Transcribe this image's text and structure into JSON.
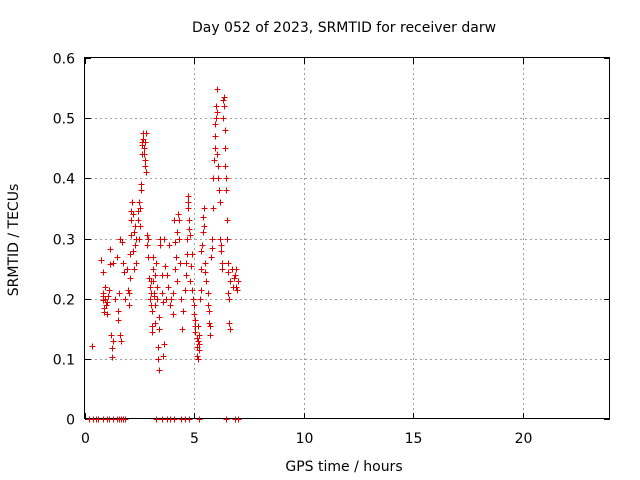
{
  "chart_data": {
    "type": "scatter",
    "title": "Day 052 of 2023, SRMTID for receiver darw",
    "xlabel": "GPS time / hours",
    "ylabel": "SRMTID / TECUs",
    "xlim": [
      0,
      24
    ],
    "ylim": [
      0,
      0.6
    ],
    "xticks": [
      "0",
      "5",
      "10",
      "15",
      "20"
    ],
    "yticks": [
      "0",
      "0.1",
      "0.2",
      "0.3",
      "0.4",
      "0.5",
      "0.6"
    ],
    "grid": true,
    "marker": "+",
    "color": "#e00000",
    "points": [
      [
        0.3,
        0.122
      ],
      [
        0.2,
        0
      ],
      [
        0.35,
        0
      ],
      [
        0.5,
        0
      ],
      [
        0.6,
        0
      ],
      [
        0.8,
        0
      ],
      [
        1.0,
        0
      ],
      [
        1.1,
        0
      ],
      [
        1.3,
        0
      ],
      [
        1.45,
        0
      ],
      [
        1.55,
        0
      ],
      [
        1.65,
        0
      ],
      [
        1.75,
        0
      ],
      [
        1.85,
        0
      ],
      [
        0.75,
        0.265
      ],
      [
        0.8,
        0.245
      ],
      [
        0.8,
        0.21
      ],
      [
        0.82,
        0.205
      ],
      [
        0.84,
        0.198
      ],
      [
        0.85,
        0.185
      ],
      [
        0.86,
        0.178
      ],
      [
        0.9,
        0.22
      ],
      [
        0.92,
        0.2
      ],
      [
        0.95,
        0.19
      ],
      [
        1.0,
        0.195
      ],
      [
        1.02,
        0.175
      ],
      [
        1.05,
        0.205
      ],
      [
        1.1,
        0.215
      ],
      [
        1.15,
        0.282
      ],
      [
        1.15,
        0.258
      ],
      [
        1.2,
        0.14
      ],
      [
        1.22,
        0.118
      ],
      [
        1.25,
        0.103
      ],
      [
        1.27,
        0.13
      ],
      [
        1.3,
        0.26
      ],
      [
        1.35,
        0.2
      ],
      [
        1.45,
        0.27
      ],
      [
        1.5,
        0.18
      ],
      [
        1.52,
        0.165
      ],
      [
        1.55,
        0.21
      ],
      [
        1.6,
        0.3
      ],
      [
        1.62,
        0.14
      ],
      [
        1.65,
        0.13
      ],
      [
        1.7,
        0.295
      ],
      [
        1.75,
        0.26
      ],
      [
        1.8,
        0.245
      ],
      [
        1.85,
        0.2
      ],
      [
        1.9,
        0.25
      ],
      [
        1.95,
        0.215
      ],
      [
        2.0,
        0.21
      ],
      [
        2.0,
        0.19
      ],
      [
        2.05,
        0.235
      ],
      [
        2.05,
        0.275
      ],
      [
        2.1,
        0.305
      ],
      [
        2.1,
        0.33
      ],
      [
        2.12,
        0.345
      ],
      [
        2.15,
        0.36
      ],
      [
        2.2,
        0.34
      ],
      [
        2.2,
        0.28
      ],
      [
        2.25,
        0.31
      ],
      [
        2.25,
        0.25
      ],
      [
        2.3,
        0.32
      ],
      [
        2.3,
        0.29
      ],
      [
        2.35,
        0.3
      ],
      [
        2.35,
        0.26
      ],
      [
        2.4,
        0.345
      ],
      [
        2.4,
        0.33
      ],
      [
        2.45,
        0.3
      ],
      [
        2.45,
        0.36
      ],
      [
        2.5,
        0.35
      ],
      [
        2.5,
        0.32
      ],
      [
        2.55,
        0.38
      ],
      [
        2.55,
        0.39
      ],
      [
        2.6,
        0.44
      ],
      [
        2.6,
        0.46
      ],
      [
        2.62,
        0.455
      ],
      [
        2.65,
        0.475
      ],
      [
        2.65,
        0.465
      ],
      [
        2.7,
        0.45
      ],
      [
        2.7,
        0.44
      ],
      [
        2.72,
        0.43
      ],
      [
        2.75,
        0.42
      ],
      [
        2.75,
        0.46
      ],
      [
        2.8,
        0.475
      ],
      [
        2.8,
        0.41
      ],
      [
        2.82,
        0.305
      ],
      [
        2.85,
        0.29
      ],
      [
        2.88,
        0.3
      ],
      [
        2.9,
        0.27
      ],
      [
        2.92,
        0.235
      ],
      [
        2.95,
        0.22
      ],
      [
        2.95,
        0.2
      ],
      [
        3.0,
        0.19
      ],
      [
        3.0,
        0.21
      ],
      [
        3.02,
        0.23
      ],
      [
        3.05,
        0.18
      ],
      [
        3.05,
        0.155
      ],
      [
        3.08,
        0.145
      ],
      [
        3.1,
        0.25
      ],
      [
        3.1,
        0.27
      ],
      [
        3.12,
        0.23
      ],
      [
        3.15,
        0.205
      ],
      [
        3.15,
        0.21
      ],
      [
        3.2,
        0.19
      ],
      [
        3.2,
        0.16
      ],
      [
        3.22,
        0.24
      ],
      [
        3.25,
        0.26
      ],
      [
        3.3,
        0.22
      ],
      [
        3.3,
        0.2
      ],
      [
        3.35,
        0.1
      ],
      [
        3.35,
        0.12
      ],
      [
        3.38,
        0.082
      ],
      [
        3.4,
        0.15
      ],
      [
        3.4,
        0.17
      ],
      [
        3.42,
        0.3
      ],
      [
        3.45,
        0.29
      ],
      [
        3.5,
        0.24
      ],
      [
        3.5,
        0.21
      ],
      [
        3.55,
        0.195
      ],
      [
        3.55,
        0.105
      ],
      [
        3.6,
        0.125
      ],
      [
        3.62,
        0.3
      ],
      [
        3.65,
        0.255
      ],
      [
        3.7,
        0.2
      ],
      [
        3.75,
        0.24
      ],
      [
        3.8,
        0.22
      ],
      [
        3.85,
        0.29
      ],
      [
        3.9,
        0.19
      ],
      [
        3.95,
        0.2
      ],
      [
        4.0,
        0.175
      ],
      [
        4.0,
        0.21
      ],
      [
        4.05,
        0.33
      ],
      [
        4.1,
        0.295
      ],
      [
        4.1,
        0.25
      ],
      [
        4.15,
        0.27
      ],
      [
        4.2,
        0.31
      ],
      [
        4.2,
        0.23
      ],
      [
        4.25,
        0.34
      ],
      [
        4.3,
        0.33
      ],
      [
        4.3,
        0.3
      ],
      [
        4.35,
        0.26
      ],
      [
        4.4,
        0.2
      ],
      [
        4.45,
        0.15
      ],
      [
        4.5,
        0.18
      ],
      [
        4.55,
        0.215
      ],
      [
        4.6,
        0.24
      ],
      [
        4.6,
        0.26
      ],
      [
        4.65,
        0.275
      ],
      [
        4.65,
        0.3
      ],
      [
        4.7,
        0.35
      ],
      [
        4.7,
        0.37
      ],
      [
        4.72,
        0.36
      ],
      [
        4.75,
        0.33
      ],
      [
        4.75,
        0.315
      ],
      [
        4.8,
        0.305
      ],
      [
        4.8,
        0.23
      ],
      [
        4.85,
        0.255
      ],
      [
        4.9,
        0.275
      ],
      [
        4.9,
        0.215
      ],
      [
        4.95,
        0.2
      ],
      [
        5.0,
        0.19
      ],
      [
        5.0,
        0.175
      ],
      [
        5.02,
        0.165
      ],
      [
        5.05,
        0.155
      ],
      [
        5.05,
        0.145
      ],
      [
        5.1,
        0.135
      ],
      [
        5.1,
        0.12
      ],
      [
        5.12,
        0.105
      ],
      [
        5.15,
        0.1
      ],
      [
        5.15,
        0.13
      ],
      [
        5.18,
        0.155
      ],
      [
        5.2,
        0.14
      ],
      [
        5.2,
        0.115
      ],
      [
        5.22,
        0.125
      ],
      [
        5.25,
        0.2
      ],
      [
        5.28,
        0.215
      ],
      [
        5.3,
        0.25
      ],
      [
        5.3,
        0.28
      ],
      [
        5.35,
        0.29
      ],
      [
        5.4,
        0.31
      ],
      [
        5.4,
        0.335
      ],
      [
        5.45,
        0.35
      ],
      [
        5.45,
        0.32
      ],
      [
        5.5,
        0.26
      ],
      [
        5.5,
        0.245
      ],
      [
        5.55,
        0.23
      ],
      [
        5.6,
        0.21
      ],
      [
        5.6,
        0.19
      ],
      [
        5.65,
        0.18
      ],
      [
        5.65,
        0.16
      ],
      [
        5.7,
        0.14
      ],
      [
        5.7,
        0.155
      ],
      [
        5.75,
        0.27
      ],
      [
        5.8,
        0.285
      ],
      [
        5.8,
        0.3
      ],
      [
        5.85,
        0.35
      ],
      [
        5.85,
        0.4
      ],
      [
        5.9,
        0.43
      ],
      [
        5.92,
        0.45
      ],
      [
        5.95,
        0.47
      ],
      [
        5.95,
        0.49
      ],
      [
        6.0,
        0.5
      ],
      [
        6.0,
        0.52
      ],
      [
        6.02,
        0.548
      ],
      [
        6.05,
        0.51
      ],
      [
        6.05,
        0.44
      ],
      [
        6.1,
        0.42
      ],
      [
        6.1,
        0.4
      ],
      [
        6.12,
        0.38
      ],
      [
        6.15,
        0.36
      ],
      [
        6.15,
        0.3
      ],
      [
        6.2,
        0.29
      ],
      [
        6.2,
        0.28
      ],
      [
        6.25,
        0.26
      ],
      [
        6.25,
        0.25
      ],
      [
        6.3,
        0.53
      ],
      [
        6.3,
        0.5
      ],
      [
        6.35,
        0.535
      ],
      [
        6.35,
        0.52
      ],
      [
        6.38,
        0.48
      ],
      [
        6.4,
        0.45
      ],
      [
        6.4,
        0.42
      ],
      [
        6.45,
        0.4
      ],
      [
        6.45,
        0.38
      ],
      [
        6.5,
        0.33
      ],
      [
        6.5,
        0.3
      ],
      [
        6.52,
        0.26
      ],
      [
        6.55,
        0.245
      ],
      [
        6.55,
        0.21
      ],
      [
        6.6,
        0.2
      ],
      [
        6.6,
        0.16
      ],
      [
        6.62,
        0.15
      ],
      [
        6.65,
        0.23
      ],
      [
        6.7,
        0.25
      ],
      [
        6.75,
        0.22
      ],
      [
        6.8,
        0.235
      ],
      [
        6.85,
        0.24
      ],
      [
        6.9,
        0.25
      ],
      [
        6.9,
        0.22
      ],
      [
        6.95,
        0.215
      ],
      [
        7.0,
        0.23
      ],
      [
        3.25,
        0
      ],
      [
        3.5,
        0
      ],
      [
        3.75,
        0
      ],
      [
        3.9,
        0
      ],
      [
        4.05,
        0
      ],
      [
        4.4,
        0
      ],
      [
        4.55,
        0
      ],
      [
        4.75,
        0
      ],
      [
        5.2,
        0
      ],
      [
        6.45,
        0
      ],
      [
        6.85,
        0
      ],
      [
        7.0,
        0
      ]
    ]
  }
}
